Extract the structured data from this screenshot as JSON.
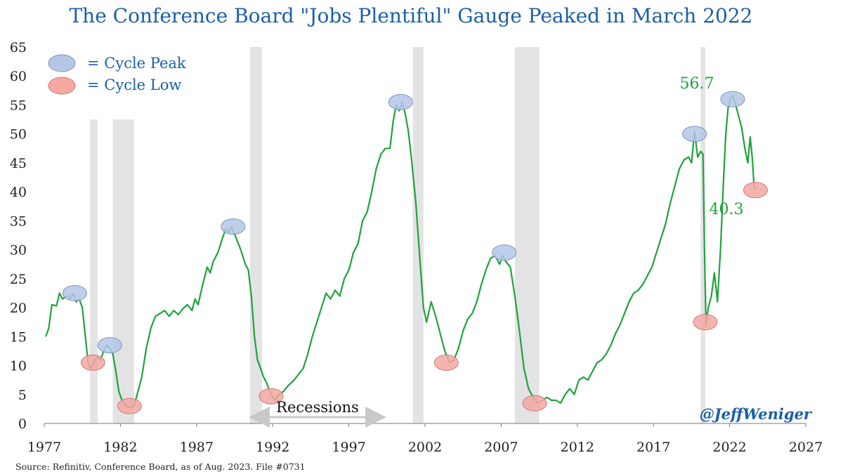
{
  "chart_data": {
    "type": "line",
    "title": "The Conference Board \"Jobs Plentiful\" Gauge Peaked in March 2022",
    "xlabel": "",
    "ylabel": "",
    "xlim": [
      1977,
      2027
    ],
    "ylim": [
      0,
      65
    ],
    "x_ticks": [
      1977,
      1982,
      1987,
      1992,
      1997,
      2002,
      2007,
      2012,
      2017,
      2022,
      2027
    ],
    "x_tick_labels": [
      "1977",
      "1982",
      "1987",
      "1992",
      "1997",
      "2002",
      "2007",
      "2012",
      "2017",
      "2022",
      "2027"
    ],
    "y_ticks": [
      0,
      5,
      10,
      15,
      20,
      25,
      30,
      35,
      40,
      45,
      50,
      55,
      60,
      65
    ],
    "y_tick_labels": [
      "0",
      "5",
      "10",
      "15",
      "20",
      "25",
      "30",
      "35",
      "40",
      "45",
      "50",
      "55",
      "60",
      "65"
    ],
    "grid": false,
    "legend": [
      {
        "label": "= Cycle Peak",
        "color": "#b4c7e7"
      },
      {
        "label": "= Cycle Low",
        "color": "#f4a7a3"
      }
    ],
    "series": [
      {
        "name": "Jobs Plentiful",
        "color": "#1fa33a",
        "points": [
          [
            1977.1,
            15.0
          ],
          [
            1977.3,
            16.5
          ],
          [
            1977.5,
            20.5
          ],
          [
            1977.8,
            20.3
          ],
          [
            1978.0,
            22.5
          ],
          [
            1978.2,
            21.5
          ],
          [
            1978.5,
            22.0
          ],
          [
            1978.7,
            21.5
          ],
          [
            1978.9,
            22.5
          ],
          [
            1979.1,
            21.0
          ],
          [
            1979.3,
            21.5
          ],
          [
            1979.5,
            20.0
          ],
          [
            1979.7,
            15.0
          ],
          [
            1979.9,
            10.0
          ],
          [
            1980.1,
            9.5
          ],
          [
            1980.3,
            10.8
          ],
          [
            1980.5,
            11.5
          ],
          [
            1980.7,
            11.0
          ],
          [
            1980.9,
            12.5
          ],
          [
            1981.1,
            13.5
          ],
          [
            1981.3,
            13.0
          ],
          [
            1981.5,
            12.0
          ],
          [
            1981.7,
            9.0
          ],
          [
            1981.9,
            5.5
          ],
          [
            1982.1,
            4.0
          ],
          [
            1982.3,
            3.2
          ],
          [
            1982.5,
            2.8
          ],
          [
            1982.7,
            2.8
          ],
          [
            1982.9,
            3.0
          ],
          [
            1983.1,
            5.0
          ],
          [
            1983.4,
            8.0
          ],
          [
            1983.7,
            13.0
          ],
          [
            1984.0,
            16.5
          ],
          [
            1984.3,
            18.5
          ],
          [
            1984.6,
            19.0
          ],
          [
            1984.9,
            19.5
          ],
          [
            1985.2,
            18.5
          ],
          [
            1985.5,
            19.5
          ],
          [
            1985.8,
            18.8
          ],
          [
            1986.1,
            19.8
          ],
          [
            1986.4,
            20.5
          ],
          [
            1986.7,
            19.5
          ],
          [
            1986.9,
            21.5
          ],
          [
            1987.1,
            20.5
          ],
          [
            1987.4,
            24.0
          ],
          [
            1987.7,
            27.0
          ],
          [
            1987.9,
            26.0
          ],
          [
            1988.1,
            28.0
          ],
          [
            1988.4,
            29.5
          ],
          [
            1988.7,
            32.0
          ],
          [
            1988.9,
            33.5
          ],
          [
            1989.1,
            33.0
          ],
          [
            1989.3,
            34.0
          ],
          [
            1989.6,
            32.0
          ],
          [
            1989.9,
            30.0
          ],
          [
            1990.2,
            27.5
          ],
          [
            1990.4,
            26.5
          ],
          [
            1990.6,
            22.0
          ],
          [
            1990.8,
            15.0
          ],
          [
            1991.0,
            11.0
          ],
          [
            1991.2,
            9.5
          ],
          [
            1991.4,
            8.0
          ],
          [
            1991.6,
            7.0
          ],
          [
            1991.8,
            5.5
          ],
          [
            1992.0,
            4.5
          ],
          [
            1992.2,
            4.0
          ],
          [
            1992.4,
            5.0
          ],
          [
            1992.7,
            5.5
          ],
          [
            1993.0,
            6.5
          ],
          [
            1993.4,
            7.5
          ],
          [
            1993.7,
            8.5
          ],
          [
            1994.0,
            9.5
          ],
          [
            1994.3,
            12.0
          ],
          [
            1994.6,
            15.0
          ],
          [
            1994.9,
            17.5
          ],
          [
            1995.2,
            20.0
          ],
          [
            1995.5,
            22.5
          ],
          [
            1995.8,
            21.5
          ],
          [
            1996.1,
            23.0
          ],
          [
            1996.4,
            22.0
          ],
          [
            1996.7,
            25.0
          ],
          [
            1997.0,
            26.5
          ],
          [
            1997.3,
            29.5
          ],
          [
            1997.6,
            31.0
          ],
          [
            1997.9,
            35.0
          ],
          [
            1998.2,
            36.5
          ],
          [
            1998.5,
            40.0
          ],
          [
            1998.8,
            44.0
          ],
          [
            1999.1,
            46.5
          ],
          [
            1999.4,
            47.5
          ],
          [
            1999.7,
            47.5
          ],
          [
            1999.9,
            52.0
          ],
          [
            2000.1,
            55.0
          ],
          [
            2000.3,
            54.0
          ],
          [
            2000.5,
            55.5
          ],
          [
            2000.7,
            53.5
          ],
          [
            2000.9,
            50.5
          ],
          [
            2001.1,
            46.0
          ],
          [
            2001.4,
            38.0
          ],
          [
            2001.7,
            27.0
          ],
          [
            2001.9,
            20.0
          ],
          [
            2002.1,
            17.5
          ],
          [
            2002.4,
            21.0
          ],
          [
            2002.7,
            18.5
          ],
          [
            2003.0,
            15.5
          ],
          [
            2003.3,
            12.5
          ],
          [
            2003.6,
            10.5
          ],
          [
            2003.9,
            11.0
          ],
          [
            2004.2,
            13.0
          ],
          [
            2004.5,
            16.0
          ],
          [
            2004.8,
            18.0
          ],
          [
            2005.1,
            19.0
          ],
          [
            2005.4,
            21.0
          ],
          [
            2005.7,
            24.0
          ],
          [
            2006.0,
            26.5
          ],
          [
            2006.3,
            28.5
          ],
          [
            2006.6,
            29.0
          ],
          [
            2006.9,
            27.5
          ],
          [
            2007.1,
            29.0
          ],
          [
            2007.3,
            28.0
          ],
          [
            2007.6,
            27.0
          ],
          [
            2007.9,
            22.0
          ],
          [
            2008.2,
            16.0
          ],
          [
            2008.5,
            9.5
          ],
          [
            2008.8,
            6.0
          ],
          [
            2009.1,
            4.5
          ],
          [
            2009.4,
            3.5
          ],
          [
            2009.7,
            4.0
          ],
          [
            2010.0,
            4.5
          ],
          [
            2010.3,
            4.0
          ],
          [
            2010.6,
            4.0
          ],
          [
            2010.9,
            3.5
          ],
          [
            2011.2,
            5.0
          ],
          [
            2011.5,
            6.0
          ],
          [
            2011.8,
            5.0
          ],
          [
            2012.1,
            7.5
          ],
          [
            2012.4,
            8.0
          ],
          [
            2012.7,
            7.5
          ],
          [
            2013.0,
            9.0
          ],
          [
            2013.3,
            10.5
          ],
          [
            2013.6,
            11.0
          ],
          [
            2013.9,
            12.0
          ],
          [
            2014.2,
            13.5
          ],
          [
            2014.5,
            15.5
          ],
          [
            2014.8,
            17.0
          ],
          [
            2015.1,
            19.0
          ],
          [
            2015.4,
            21.0
          ],
          [
            2015.7,
            22.5
          ],
          [
            2016.0,
            23.0
          ],
          [
            2016.3,
            24.0
          ],
          [
            2016.6,
            25.5
          ],
          [
            2016.9,
            27.0
          ],
          [
            2017.2,
            29.5
          ],
          [
            2017.5,
            32.0
          ],
          [
            2017.8,
            34.5
          ],
          [
            2018.1,
            38.0
          ],
          [
            2018.4,
            41.0
          ],
          [
            2018.7,
            44.0
          ],
          [
            2019.0,
            45.5
          ],
          [
            2019.3,
            46.0
          ],
          [
            2019.5,
            45.0
          ],
          [
            2019.7,
            50.5
          ],
          [
            2019.9,
            46.0
          ],
          [
            2020.1,
            47.0
          ],
          [
            2020.25,
            46.5
          ],
          [
            2020.35,
            30.0
          ],
          [
            2020.45,
            17.0
          ],
          [
            2020.6,
            20.0
          ],
          [
            2020.8,
            22.0
          ],
          [
            2021.0,
            26.0
          ],
          [
            2021.2,
            21.0
          ],
          [
            2021.4,
            30.0
          ],
          [
            2021.6,
            42.0
          ],
          [
            2021.75,
            50.0
          ],
          [
            2021.9,
            54.5
          ],
          [
            2022.05,
            56.0
          ],
          [
            2022.2,
            56.7
          ],
          [
            2022.4,
            55.0
          ],
          [
            2022.6,
            53.0
          ],
          [
            2022.8,
            51.0
          ],
          [
            2023.0,
            47.5
          ],
          [
            2023.2,
            45.0
          ],
          [
            2023.35,
            49.5
          ],
          [
            2023.5,
            45.5
          ],
          [
            2023.6,
            41.0
          ],
          [
            2023.7,
            40.3
          ]
        ]
      }
    ],
    "recessions": [
      [
        1980.0,
        1980.5
      ],
      [
        1981.5,
        1982.9
      ],
      [
        1990.5,
        1991.3
      ],
      [
        2001.2,
        2001.9
      ],
      [
        2007.9,
        2009.5
      ],
      [
        2020.1,
        2020.4
      ]
    ],
    "cycle_peaks": [
      [
        1979.0,
        22.5
      ],
      [
        1981.3,
        13.5
      ],
      [
        1989.4,
        34.0
      ],
      [
        2000.4,
        55.5
      ],
      [
        2007.2,
        29.5
      ],
      [
        2019.7,
        50.0
      ],
      [
        2022.2,
        56.0
      ]
    ],
    "cycle_lows": [
      [
        1980.2,
        10.5
      ],
      [
        1982.6,
        3.0
      ],
      [
        1991.9,
        4.7
      ],
      [
        2003.4,
        10.5
      ],
      [
        2009.2,
        3.5
      ],
      [
        2020.4,
        17.5
      ],
      [
        2023.7,
        40.3
      ]
    ],
    "annotations": [
      {
        "text": "56.7",
        "x": 2022.2,
        "y": 56.7,
        "color": "#1fa33a"
      },
      {
        "text": "40.3",
        "x": 2023.7,
        "y": 40.3,
        "color": "#1fa33a"
      },
      {
        "text": "Recessions"
      }
    ],
    "handle": "@JeffWeniger",
    "source": "Source: Refinitiv, Conference Board, as of Aug. 2023. File #0731"
  },
  "colors": {
    "title": "#1a5fa8",
    "line": "#1fa33a",
    "peak_fill": "#b4c7e7",
    "peak_stroke": "#7f95bf",
    "low_fill": "#f4a7a3",
    "low_stroke": "#d07a76",
    "recession": "#e3e3e3",
    "legend_text": "#1a5fa8",
    "handle": "#1a5fa8",
    "arrow": "#c8c8c8",
    "axis": "#777777"
  }
}
